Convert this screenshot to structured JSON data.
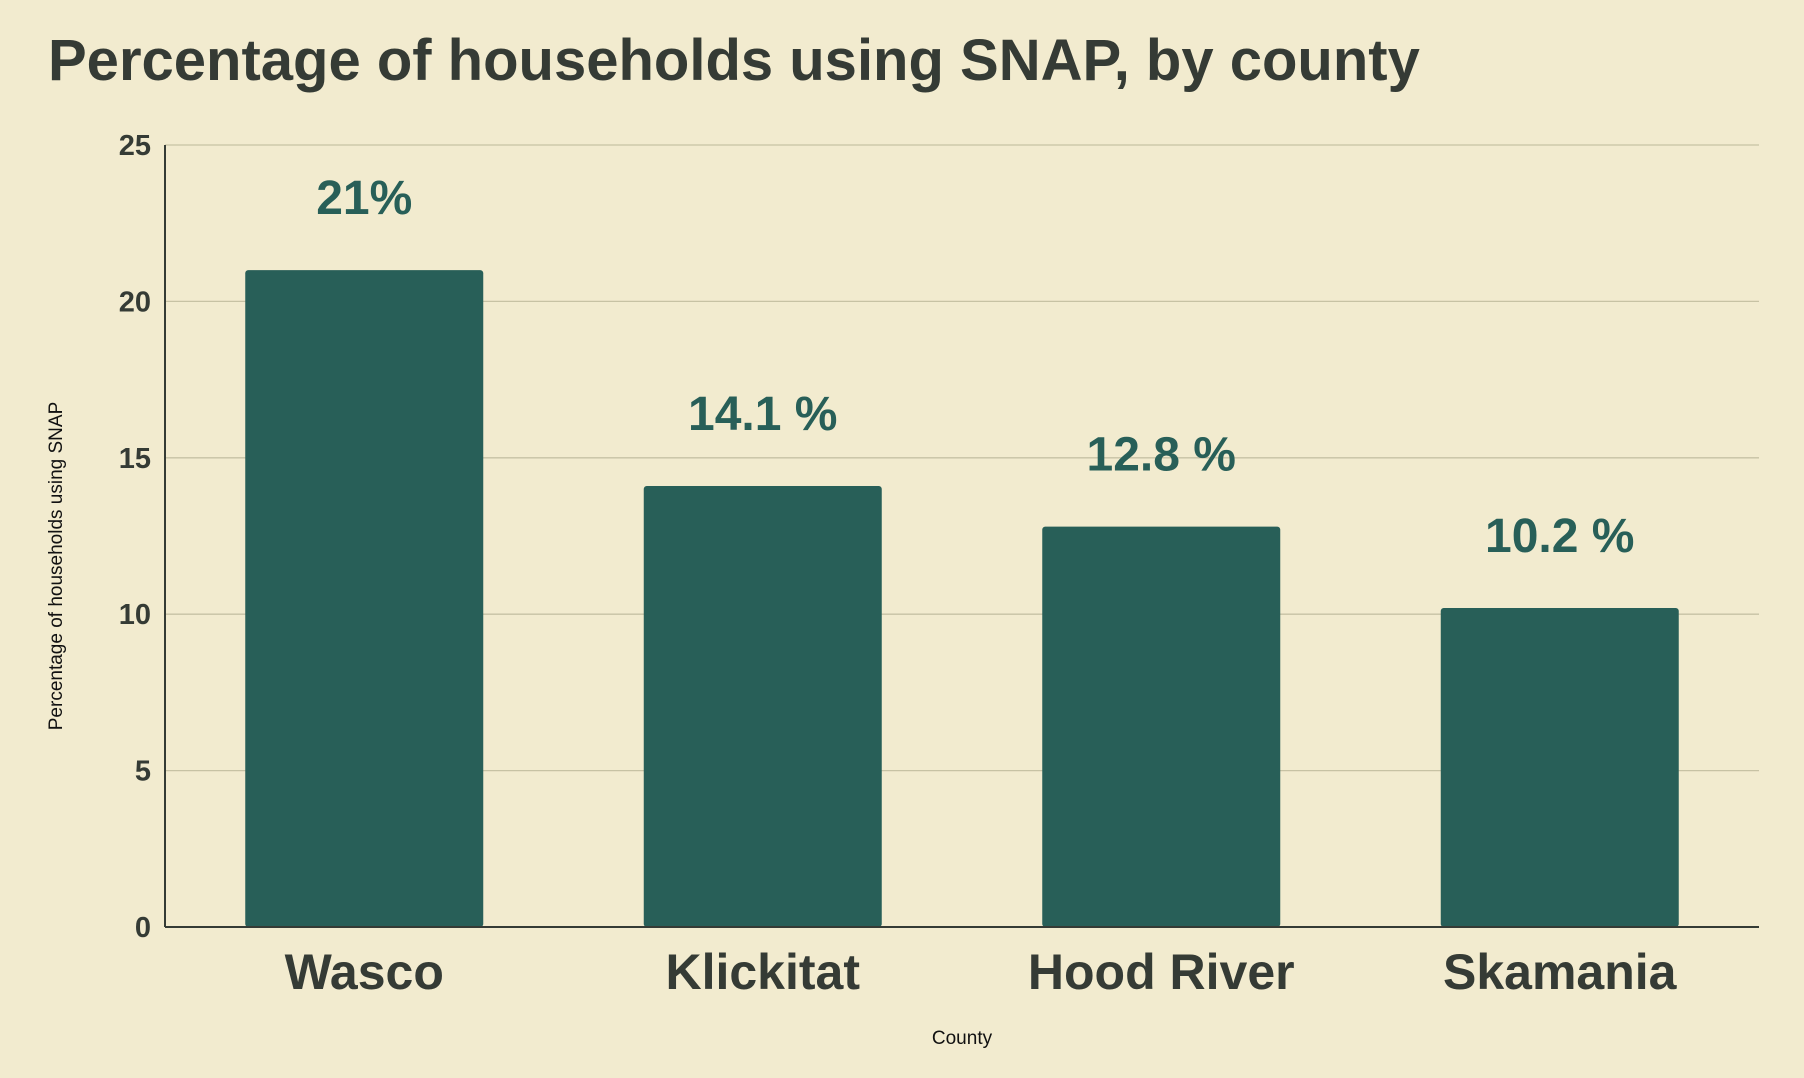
{
  "colors": {
    "background": "#f2ebcf",
    "bar": "#285f58",
    "title": "#353b35",
    "tick_label": "#353b35",
    "data_label": "#285f58",
    "gridline": "#c7c2a4",
    "axis_line": "#353b35",
    "axis_title": "#111111"
  },
  "chart_data": {
    "type": "bar",
    "title": "Percentage of households using SNAP,  by county",
    "xlabel": "County",
    "ylabel": "Percentage of households using SNAP",
    "categories": [
      "Wasco",
      "Klickitat",
      "Hood River",
      "Skamania"
    ],
    "values": [
      21,
      14.1,
      12.8,
      10.2
    ],
    "data_labels": [
      "21%",
      "14.1 %",
      "12.8 %",
      "10.2 %"
    ],
    "ylim": [
      0,
      25
    ],
    "yticks": [
      0,
      5,
      10,
      15,
      20,
      25
    ],
    "grid": true,
    "legend": "none"
  }
}
